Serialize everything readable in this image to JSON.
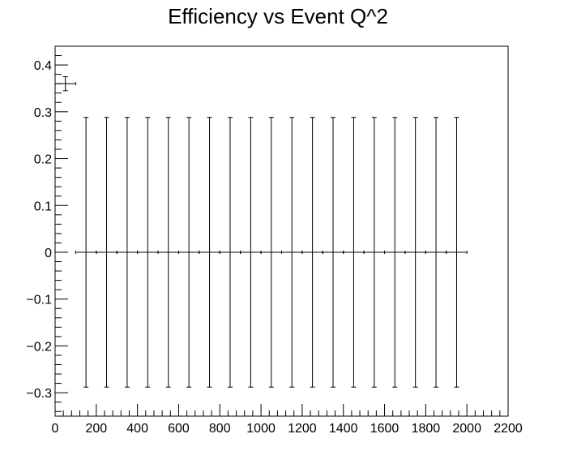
{
  "chart_data": {
    "type": "scatter",
    "title": "Efficiency vs Event Q^2",
    "xlabel": "",
    "ylabel": "",
    "xlim": [
      0,
      2200
    ],
    "ylim": [
      -0.35,
      0.44
    ],
    "x_ticks": [
      0,
      200,
      400,
      600,
      800,
      1000,
      1200,
      1400,
      1600,
      1800,
      2000,
      2200
    ],
    "x_tick_labels": [
      "0",
      "200",
      "400",
      "600",
      "800",
      "1000",
      "1200",
      "1400",
      "1600",
      "1800",
      "2000",
      "2200"
    ],
    "y_ticks": [
      -0.3,
      -0.2,
      -0.1,
      0,
      0.1,
      0.2,
      0.3,
      0.4
    ],
    "y_tick_labels": [
      "−0.3",
      "−0.2",
      "−0.1",
      "0",
      "0.1",
      "0.2",
      "0.3",
      "0.4"
    ],
    "grid": false,
    "legend": "none",
    "bin_half_width": 50,
    "series": [
      {
        "points": [
          {
            "x": 50,
            "y": 0.36,
            "err": 0.015
          },
          {
            "x": 150,
            "y": 0,
            "err": 0.288
          },
          {
            "x": 250,
            "y": 0,
            "err": 0.288
          },
          {
            "x": 350,
            "y": 0,
            "err": 0.288
          },
          {
            "x": 450,
            "y": 0,
            "err": 0.288
          },
          {
            "x": 550,
            "y": 0,
            "err": 0.288
          },
          {
            "x": 650,
            "y": 0,
            "err": 0.288
          },
          {
            "x": 750,
            "y": 0,
            "err": 0.288
          },
          {
            "x": 850,
            "y": 0,
            "err": 0.288
          },
          {
            "x": 950,
            "y": 0,
            "err": 0.288
          },
          {
            "x": 1050,
            "y": 0,
            "err": 0.288
          },
          {
            "x": 1150,
            "y": 0,
            "err": 0.288
          },
          {
            "x": 1250,
            "y": 0,
            "err": 0.288
          },
          {
            "x": 1350,
            "y": 0,
            "err": 0.288
          },
          {
            "x": 1450,
            "y": 0,
            "err": 0.288
          },
          {
            "x": 1550,
            "y": 0,
            "err": 0.288
          },
          {
            "x": 1650,
            "y": 0,
            "err": 0.288
          },
          {
            "x": 1750,
            "y": 0,
            "err": 0.288
          },
          {
            "x": 1850,
            "y": 0,
            "err": 0.288
          },
          {
            "x": 1950,
            "y": 0,
            "err": 0.288
          }
        ]
      }
    ],
    "colors": {
      "marker": "#000000",
      "axis": "#000000",
      "background": "#ffffff"
    }
  }
}
